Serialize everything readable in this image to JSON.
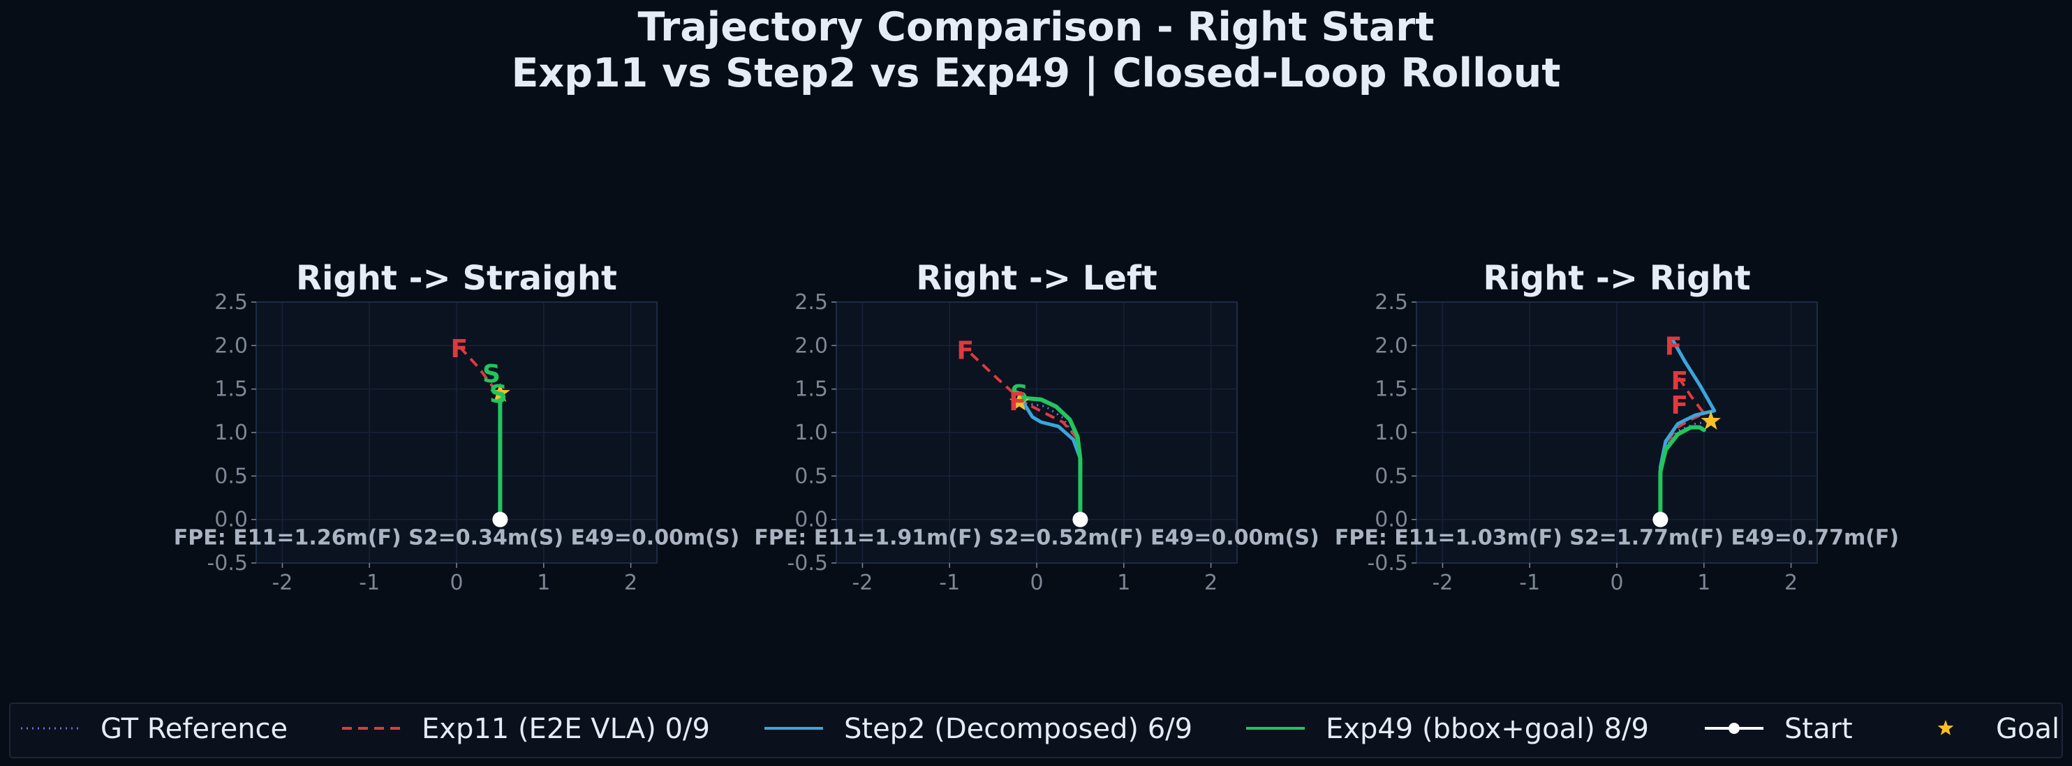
{
  "title_line1": "Trajectory Comparison - Right Start",
  "title_line2": "Exp11 vs Step2 vs Exp49 | Closed-Loop Rollout",
  "colors": {
    "gt": "#6d6fe0",
    "exp11": "#e0393e",
    "step2": "#3aa6dc",
    "exp49": "#22c55e",
    "start": "#ffffff",
    "goal": "#fbbf24",
    "fail_text": "#e0393e"
  },
  "legend": [
    {
      "key": "gt",
      "label": "GT Reference",
      "style": "dotted"
    },
    {
      "key": "exp11",
      "label": "Exp11 (E2E VLA) 0/9",
      "style": "dashed"
    },
    {
      "key": "step2",
      "label": "Step2 (Decomposed) 6/9",
      "style": "solid"
    },
    {
      "key": "exp49",
      "label": "Exp49 (bbox+goal) 8/9",
      "style": "solid"
    },
    {
      "key": "start",
      "label": "Start",
      "style": "line-dot"
    },
    {
      "key": "goal",
      "label": "Goal",
      "style": "star"
    }
  ],
  "chart_data": [
    {
      "type": "line",
      "title": "Right -> Straight",
      "xlim": [
        -2.3,
        2.3
      ],
      "ylim": [
        -0.5,
        2.5
      ],
      "xticks": [
        -2,
        -1,
        0,
        1,
        2
      ],
      "yticks": [
        -0.5,
        0.0,
        0.5,
        1.0,
        1.5,
        2.0,
        2.5
      ],
      "xtick_labels": [
        "-2",
        "-1",
        "0",
        "1",
        "2"
      ],
      "ytick_labels": [
        "-0.5",
        "0.0",
        "0.5",
        "1.0",
        "1.5",
        "2.0",
        "2.5"
      ],
      "grid": true,
      "fpe_text": "FPE: E11=1.26m(F)  S2=0.34m(S)  E49=0.00m(S)",
      "start": [
        0.5,
        0.0
      ],
      "goal": [
        0.5,
        1.45
      ],
      "series": [
        {
          "key": "gt",
          "x": [
            0.5,
            0.5,
            0.5
          ],
          "y": [
            0.0,
            0.7,
            1.45
          ]
        },
        {
          "key": "exp11",
          "x": [
            0.5,
            0.5,
            0.4,
            0.25,
            0.05
          ],
          "y": [
            0.0,
            1.35,
            1.55,
            1.75,
            1.97
          ]
        },
        {
          "key": "step2",
          "x": [
            0.5,
            0.5,
            0.5
          ],
          "y": [
            0.0,
            1.2,
            1.5
          ]
        },
        {
          "key": "exp49",
          "x": [
            0.5,
            0.5,
            0.5
          ],
          "y": [
            0.0,
            0.8,
            1.45
          ]
        }
      ],
      "markers": [
        {
          "text": "F",
          "key": "exp11",
          "x": 0.03,
          "y": 1.97
        },
        {
          "text": "S",
          "key": "exp49",
          "x": 0.4,
          "y": 1.68
        },
        {
          "text": "S",
          "key": "exp49",
          "x": 0.48,
          "y": 1.45
        }
      ]
    },
    {
      "type": "line",
      "title": "Right -> Left",
      "xlim": [
        -2.3,
        2.3
      ],
      "ylim": [
        -0.5,
        2.5
      ],
      "xticks": [
        -2,
        -1,
        0,
        1,
        2
      ],
      "yticks": [
        -0.5,
        0.0,
        0.5,
        1.0,
        1.5,
        2.0,
        2.5
      ],
      "xtick_labels": [
        "-2",
        "-1",
        "0",
        "1",
        "2"
      ],
      "ytick_labels": [
        "-0.5",
        "0.0",
        "0.5",
        "1.0",
        "1.5",
        "2.0",
        "2.5"
      ],
      "grid": true,
      "fpe_text": "FPE: E11=1.91m(F)  S2=0.52m(F)  E49=0.00m(S)",
      "start": [
        0.5,
        0.0
      ],
      "goal": [
        -0.2,
        1.35
      ],
      "series": [
        {
          "key": "gt",
          "x": [
            0.5,
            0.5,
            0.44,
            0.3,
            0.1,
            -0.2
          ],
          "y": [
            0.0,
            0.7,
            0.95,
            1.17,
            1.3,
            1.35
          ]
        },
        {
          "key": "exp11",
          "x": [
            0.5,
            0.5,
            0.45,
            0.3,
            0.1,
            -0.15,
            -0.45,
            -0.8
          ],
          "y": [
            0.0,
            0.7,
            0.95,
            1.12,
            1.22,
            1.35,
            1.62,
            1.95
          ]
        },
        {
          "key": "step2",
          "x": [
            0.5,
            0.5,
            0.42,
            0.25,
            0.05,
            -0.05,
            -0.2
          ],
          "y": [
            0.0,
            0.7,
            0.92,
            1.07,
            1.12,
            1.18,
            1.42
          ]
        },
        {
          "key": "exp49",
          "x": [
            0.5,
            0.5,
            0.47,
            0.38,
            0.22,
            0.05,
            -0.2
          ],
          "y": [
            0.0,
            0.7,
            0.95,
            1.15,
            1.3,
            1.38,
            1.4
          ]
        }
      ],
      "markers": [
        {
          "text": "F",
          "key": "exp11",
          "x": -0.82,
          "y": 1.95
        },
        {
          "text": "S",
          "key": "exp49",
          "x": -0.2,
          "y": 1.45
        },
        {
          "text": "F",
          "key": "exp11",
          "x": -0.22,
          "y": 1.36
        }
      ]
    },
    {
      "type": "line",
      "title": "Right -> Right",
      "xlim": [
        -2.3,
        2.3
      ],
      "ylim": [
        -0.5,
        2.5
      ],
      "xticks": [
        -2,
        -1,
        0,
        1,
        2
      ],
      "yticks": [
        -0.5,
        0.0,
        0.5,
        1.0,
        1.5,
        2.0,
        2.5
      ],
      "xtick_labels": [
        "-2",
        "-1",
        "0",
        "1",
        "2"
      ],
      "ytick_labels": [
        "-0.5",
        "0.0",
        "0.5",
        "1.0",
        "1.5",
        "2.0",
        "2.5"
      ],
      "grid": true,
      "fpe_text": "FPE: E11=1.03m(F)  S2=1.77m(F)  E49=0.77m(F)",
      "start": [
        0.5,
        0.0
      ],
      "goal": [
        1.08,
        1.13
      ],
      "series": [
        {
          "key": "gt",
          "x": [
            0.5,
            0.5,
            0.56,
            0.7,
            0.9,
            1.08
          ],
          "y": [
            0.0,
            0.6,
            0.85,
            1.02,
            1.1,
            1.13
          ]
        },
        {
          "key": "exp11",
          "x": [
            0.5,
            0.5,
            0.56,
            0.68,
            0.85,
            1.0,
            0.85,
            0.7
          ],
          "y": [
            0.0,
            0.6,
            0.86,
            1.05,
            1.15,
            1.22,
            1.42,
            1.65
          ]
        },
        {
          "key": "step2",
          "x": [
            0.5,
            0.5,
            0.56,
            0.7,
            0.9,
            1.12,
            0.95,
            0.78,
            0.65
          ],
          "y": [
            0.0,
            0.6,
            0.9,
            1.1,
            1.2,
            1.25,
            1.55,
            1.82,
            2.05
          ]
        },
        {
          "key": "exp49",
          "x": [
            0.5,
            0.5,
            0.56,
            0.7,
            0.85,
            0.95,
            1.0
          ],
          "y": [
            0.0,
            0.55,
            0.8,
            0.98,
            1.06,
            1.06,
            1.03
          ]
        }
      ],
      "markers": [
        {
          "text": "F",
          "key": "exp11",
          "x": 0.65,
          "y": 2.0
        },
        {
          "text": "F",
          "key": "exp11",
          "x": 0.72,
          "y": 1.6
        },
        {
          "text": "F",
          "key": "exp11",
          "x": 0.72,
          "y": 1.32
        }
      ]
    }
  ]
}
